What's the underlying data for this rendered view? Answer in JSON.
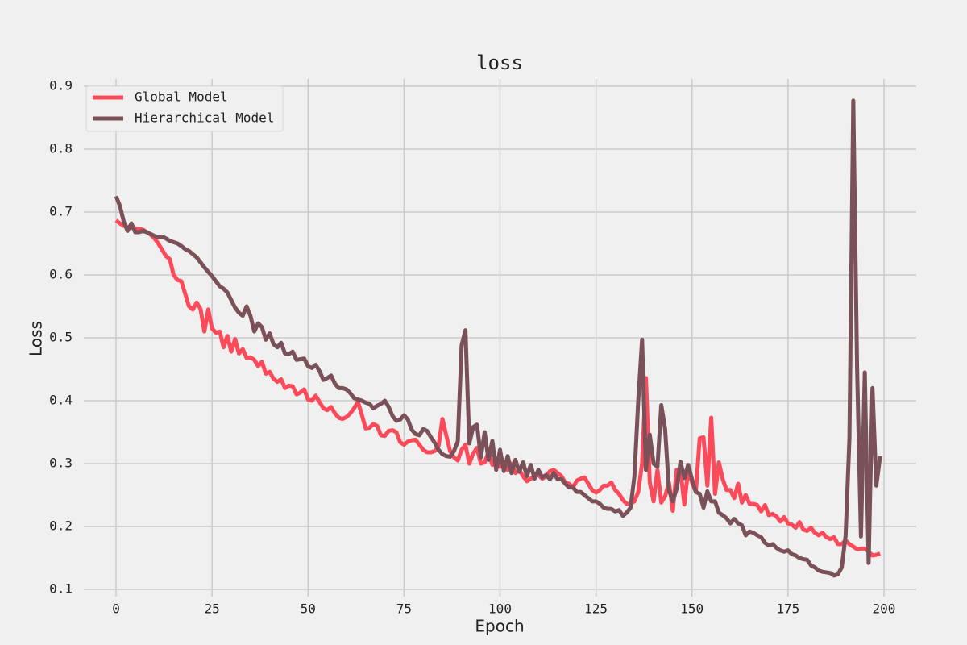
{
  "chart_data": {
    "type": "line",
    "title": "loss",
    "x_label": "Epoch",
    "y_label": "Loss",
    "x": [
      0,
      1,
      2,
      3,
      4,
      5,
      6,
      7,
      8,
      9,
      10,
      11,
      12,
      13,
      14,
      15,
      16,
      17,
      18,
      19,
      20,
      21,
      22,
      23,
      24,
      25,
      26,
      27,
      28,
      29,
      30,
      31,
      32,
      33,
      34,
      35,
      36,
      37,
      38,
      39,
      40,
      41,
      42,
      43,
      44,
      45,
      46,
      47,
      48,
      49,
      50,
      51,
      52,
      53,
      54,
      55,
      56,
      57,
      58,
      59,
      60,
      61,
      62,
      63,
      64,
      65,
      66,
      67,
      68,
      69,
      70,
      71,
      72,
      73,
      74,
      75,
      76,
      77,
      78,
      79,
      80,
      81,
      82,
      83,
      84,
      85,
      86,
      87,
      88,
      89,
      90,
      91,
      92,
      93,
      94,
      95,
      96,
      97,
      98,
      99,
      100,
      101,
      102,
      103,
      104,
      105,
      106,
      107,
      108,
      109,
      110,
      111,
      112,
      113,
      114,
      115,
      116,
      117,
      118,
      119,
      120,
      121,
      122,
      123,
      124,
      125,
      126,
      127,
      128,
      129,
      130,
      131,
      132,
      133,
      134,
      135,
      136,
      137,
      138,
      139,
      140,
      141,
      142,
      143,
      144,
      145,
      146,
      147,
      148,
      149,
      150,
      151,
      152,
      153,
      154,
      155,
      156,
      157,
      158,
      159,
      160,
      161,
      162,
      163,
      164,
      165,
      166,
      167,
      168,
      169,
      170,
      171,
      172,
      173,
      174,
      175,
      176,
      177,
      178,
      179,
      180,
      181,
      182,
      183,
      184,
      185,
      186,
      187,
      188,
      189,
      190,
      191,
      192,
      193,
      194,
      195,
      196,
      197,
      198,
      199
    ],
    "series": [
      {
        "name": "Global Model",
        "color": "#fc4a5b",
        "values": [
          0.687,
          0.682,
          0.678,
          0.676,
          0.675,
          0.674,
          0.673,
          0.672,
          0.668,
          0.664,
          0.658,
          0.65,
          0.64,
          0.63,
          0.625,
          0.6,
          0.592,
          0.59,
          0.57,
          0.55,
          0.545,
          0.556,
          0.546,
          0.51,
          0.545,
          0.515,
          0.508,
          0.51,
          0.485,
          0.503,
          0.478,
          0.498,
          0.475,
          0.482,
          0.468,
          0.469,
          0.465,
          0.455,
          0.462,
          0.443,
          0.446,
          0.435,
          0.43,
          0.434,
          0.42,
          0.424,
          0.423,
          0.41,
          0.413,
          0.418,
          0.402,
          0.4,
          0.408,
          0.398,
          0.388,
          0.385,
          0.39,
          0.38,
          0.373,
          0.371,
          0.374,
          0.38,
          0.388,
          0.398,
          0.378,
          0.356,
          0.357,
          0.363,
          0.36,
          0.345,
          0.344,
          0.352,
          0.353,
          0.35,
          0.334,
          0.33,
          0.335,
          0.337,
          0.338,
          0.33,
          0.322,
          0.318,
          0.318,
          0.32,
          0.328,
          0.371,
          0.345,
          0.32,
          0.31,
          0.305,
          0.322,
          0.33,
          0.3,
          0.316,
          0.325,
          0.3,
          0.302,
          0.318,
          0.298,
          0.306,
          0.295,
          0.302,
          0.29,
          0.3,
          0.285,
          0.29,
          0.28,
          0.272,
          0.276,
          0.28,
          0.282,
          0.276,
          0.28,
          0.288,
          0.29,
          0.285,
          0.28,
          0.27,
          0.268,
          0.262,
          0.273,
          0.276,
          0.278,
          0.268,
          0.258,
          0.254,
          0.258,
          0.265,
          0.265,
          0.27,
          0.258,
          0.252,
          0.242,
          0.236,
          0.236,
          0.24,
          0.255,
          0.3,
          0.436,
          0.27,
          0.24,
          0.29,
          0.238,
          0.248,
          0.27,
          0.225,
          0.29,
          0.29,
          0.235,
          0.29,
          0.27,
          0.255,
          0.34,
          0.342,
          0.265,
          0.373,
          0.252,
          0.302,
          0.275,
          0.258,
          0.258,
          0.245,
          0.268,
          0.238,
          0.25,
          0.236,
          0.236,
          0.234,
          0.224,
          0.234,
          0.218,
          0.22,
          0.216,
          0.208,
          0.215,
          0.205,
          0.203,
          0.198,
          0.207,
          0.195,
          0.193,
          0.198,
          0.19,
          0.186,
          0.19,
          0.183,
          0.18,
          0.183,
          0.172,
          0.172,
          0.178,
          0.172,
          0.168,
          0.164,
          0.165,
          0.165,
          0.16,
          0.154,
          0.155,
          0.157
        ]
      },
      {
        "name": "Hierarchical Model",
        "color": "#7a5059",
        "values": [
          0.725,
          0.71,
          0.685,
          0.67,
          0.682,
          0.668,
          0.668,
          0.67,
          0.668,
          0.665,
          0.662,
          0.66,
          0.661,
          0.658,
          0.654,
          0.652,
          0.65,
          0.646,
          0.641,
          0.638,
          0.633,
          0.628,
          0.62,
          0.612,
          0.605,
          0.598,
          0.59,
          0.582,
          0.578,
          0.572,
          0.56,
          0.548,
          0.54,
          0.535,
          0.55,
          0.535,
          0.51,
          0.523,
          0.517,
          0.497,
          0.507,
          0.49,
          0.485,
          0.492,
          0.475,
          0.474,
          0.478,
          0.465,
          0.466,
          0.467,
          0.455,
          0.452,
          0.457,
          0.447,
          0.433,
          0.436,
          0.44,
          0.427,
          0.42,
          0.42,
          0.418,
          0.412,
          0.404,
          0.402,
          0.4,
          0.397,
          0.395,
          0.388,
          0.392,
          0.395,
          0.4,
          0.39,
          0.376,
          0.368,
          0.37,
          0.377,
          0.37,
          0.354,
          0.347,
          0.345,
          0.355,
          0.352,
          0.342,
          0.333,
          0.322,
          0.315,
          0.312,
          0.311,
          0.32,
          0.335,
          0.488,
          0.512,
          0.332,
          0.358,
          0.362,
          0.31,
          0.35,
          0.306,
          0.336,
          0.29,
          0.322,
          0.288,
          0.312,
          0.285,
          0.306,
          0.287,
          0.302,
          0.28,
          0.298,
          0.276,
          0.29,
          0.278,
          0.282,
          0.275,
          0.285,
          0.275,
          0.275,
          0.268,
          0.262,
          0.262,
          0.255,
          0.255,
          0.25,
          0.245,
          0.24,
          0.24,
          0.236,
          0.23,
          0.228,
          0.228,
          0.224,
          0.226,
          0.217,
          0.222,
          0.23,
          0.28,
          0.4,
          0.497,
          0.29,
          0.346,
          0.3,
          0.295,
          0.393,
          0.355,
          0.258,
          0.24,
          0.26,
          0.303,
          0.277,
          0.298,
          0.275,
          0.255,
          0.252,
          0.23,
          0.256,
          0.24,
          0.24,
          0.222,
          0.218,
          0.213,
          0.205,
          0.212,
          0.205,
          0.202,
          0.186,
          0.192,
          0.19,
          0.186,
          0.183,
          0.174,
          0.17,
          0.172,
          0.166,
          0.162,
          0.16,
          0.162,
          0.156,
          0.154,
          0.15,
          0.148,
          0.147,
          0.138,
          0.135,
          0.13,
          0.128,
          0.127,
          0.126,
          0.122,
          0.124,
          0.135,
          0.185,
          0.34,
          0.877,
          0.45,
          0.184,
          0.445,
          0.142,
          0.42,
          0.265,
          0.312
        ]
      }
    ],
    "xlim": [
      -8.4,
      208.4
    ],
    "ylim": [
      0.0885,
      0.9115
    ],
    "xticks": [
      0,
      25,
      50,
      75,
      100,
      125,
      150,
      175,
      200
    ],
    "yticks": [
      0.1,
      0.2,
      0.3,
      0.4,
      0.5,
      0.6,
      0.7,
      0.8,
      0.9
    ],
    "grid": true,
    "legend": "upper left"
  }
}
